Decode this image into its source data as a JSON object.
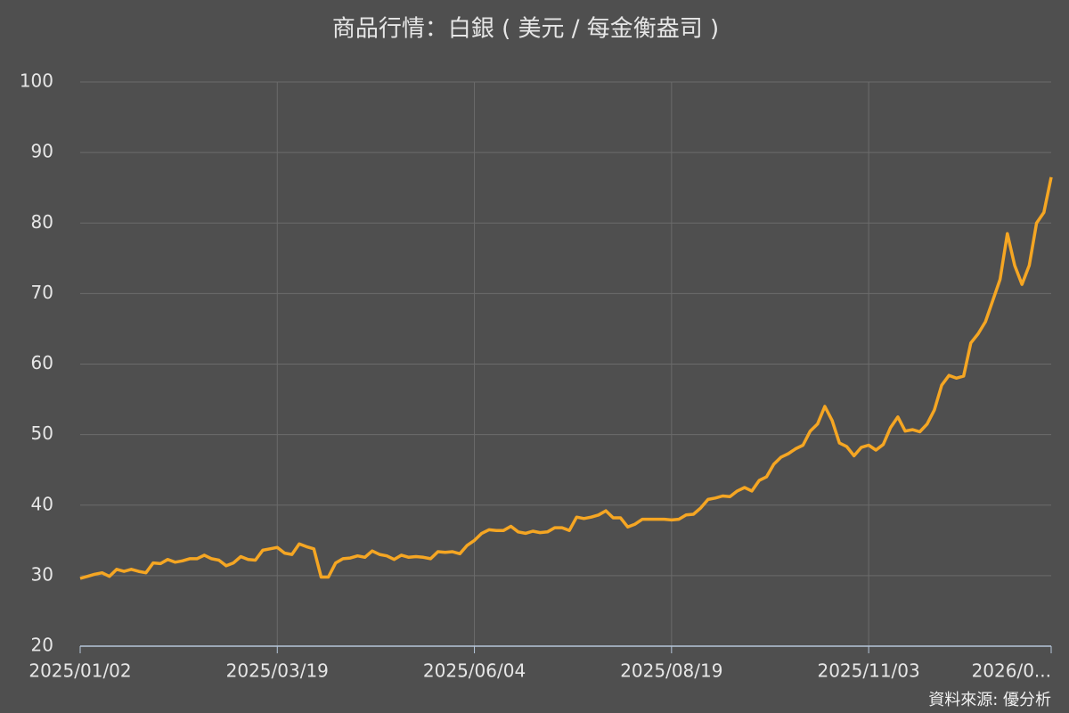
{
  "chart_data": {
    "type": "line",
    "title": "商品行情：白銀 ( 美元 / 每金衡盎司 )",
    "source": "資料來源: 優分析",
    "categories": [
      "2025/01/02",
      null,
      null,
      null,
      null,
      null,
      null,
      null,
      null,
      null,
      null,
      null,
      null,
      null,
      null,
      null,
      null,
      null,
      null,
      null,
      null,
      null,
      null,
      null,
      null,
      null,
      null,
      "2025/03/19",
      null,
      null,
      null,
      null,
      null,
      null,
      null,
      null,
      null,
      null,
      null,
      null,
      null,
      null,
      null,
      null,
      null,
      null,
      null,
      null,
      null,
      null,
      null,
      null,
      null,
      null,
      "2025/06/04",
      null,
      null,
      null,
      null,
      null,
      null,
      null,
      null,
      null,
      null,
      null,
      null,
      null,
      null,
      null,
      null,
      null,
      null,
      null,
      null,
      null,
      null,
      null,
      null,
      null,
      null,
      "2025/08/19",
      null,
      null,
      null,
      null,
      null,
      null,
      null,
      null,
      null,
      null,
      null,
      null,
      null,
      null,
      null,
      null,
      null,
      null,
      null,
      null,
      null,
      null,
      null,
      null,
      null,
      null,
      "2025/11/03",
      null,
      null,
      null,
      null,
      null,
      null,
      null,
      null,
      null,
      null,
      null,
      null,
      null,
      null,
      null,
      null,
      null,
      null,
      null,
      null,
      null,
      null,
      null,
      null,
      "2026/0..."
    ],
    "series": [
      {
        "name": "白銀",
        "color": "#f5a623",
        "values": [
          29.6,
          29.9,
          30.2,
          30.4,
          29.9,
          30.9,
          30.6,
          30.9,
          30.6,
          30.4,
          31.8,
          31.7,
          32.3,
          31.9,
          32.1,
          32.4,
          32.4,
          32.9,
          32.4,
          32.2,
          31.4,
          31.8,
          32.7,
          32.3,
          32.2,
          33.6,
          33.8,
          34.0,
          33.2,
          33.0,
          34.5,
          34.1,
          33.8,
          29.8,
          29.8,
          31.8,
          32.4,
          32.5,
          32.8,
          32.6,
          33.5,
          33.0,
          32.8,
          32.3,
          32.9,
          32.6,
          32.7,
          32.6,
          32.4,
          33.4,
          33.3,
          33.4,
          33.1,
          34.3,
          35.0,
          36.0,
          36.5,
          36.4,
          36.4,
          37.0,
          36.2,
          36.0,
          36.3,
          36.1,
          36.2,
          36.8,
          36.8,
          36.4,
          38.3,
          38.1,
          38.3,
          38.6,
          39.2,
          38.2,
          38.2,
          36.9,
          37.3,
          38.0,
          38.0,
          38.0,
          38.0,
          37.9,
          38.0,
          38.6,
          38.7,
          39.6,
          40.8,
          41.0,
          41.3,
          41.2,
          42.0,
          42.5,
          42.0,
          43.5,
          44.0,
          45.8,
          46.8,
          47.3,
          48.0,
          48.5,
          50.5,
          51.5,
          54.0,
          52.0,
          48.8,
          48.3,
          47.0,
          48.2,
          48.5,
          47.8,
          48.6,
          51.0,
          52.5,
          50.5,
          50.7,
          50.4,
          51.5,
          53.5,
          57.0,
          58.4,
          58.0,
          58.3,
          63.0,
          64.3,
          66.0,
          69.0,
          72.0,
          78.5,
          74.0,
          71.3,
          74.0,
          80.0,
          81.5,
          86.5
        ]
      }
    ],
    "ylim": [
      20,
      100
    ],
    "yticks": [
      20,
      30,
      40,
      50,
      60,
      70,
      80,
      90,
      100
    ],
    "grid": true
  }
}
